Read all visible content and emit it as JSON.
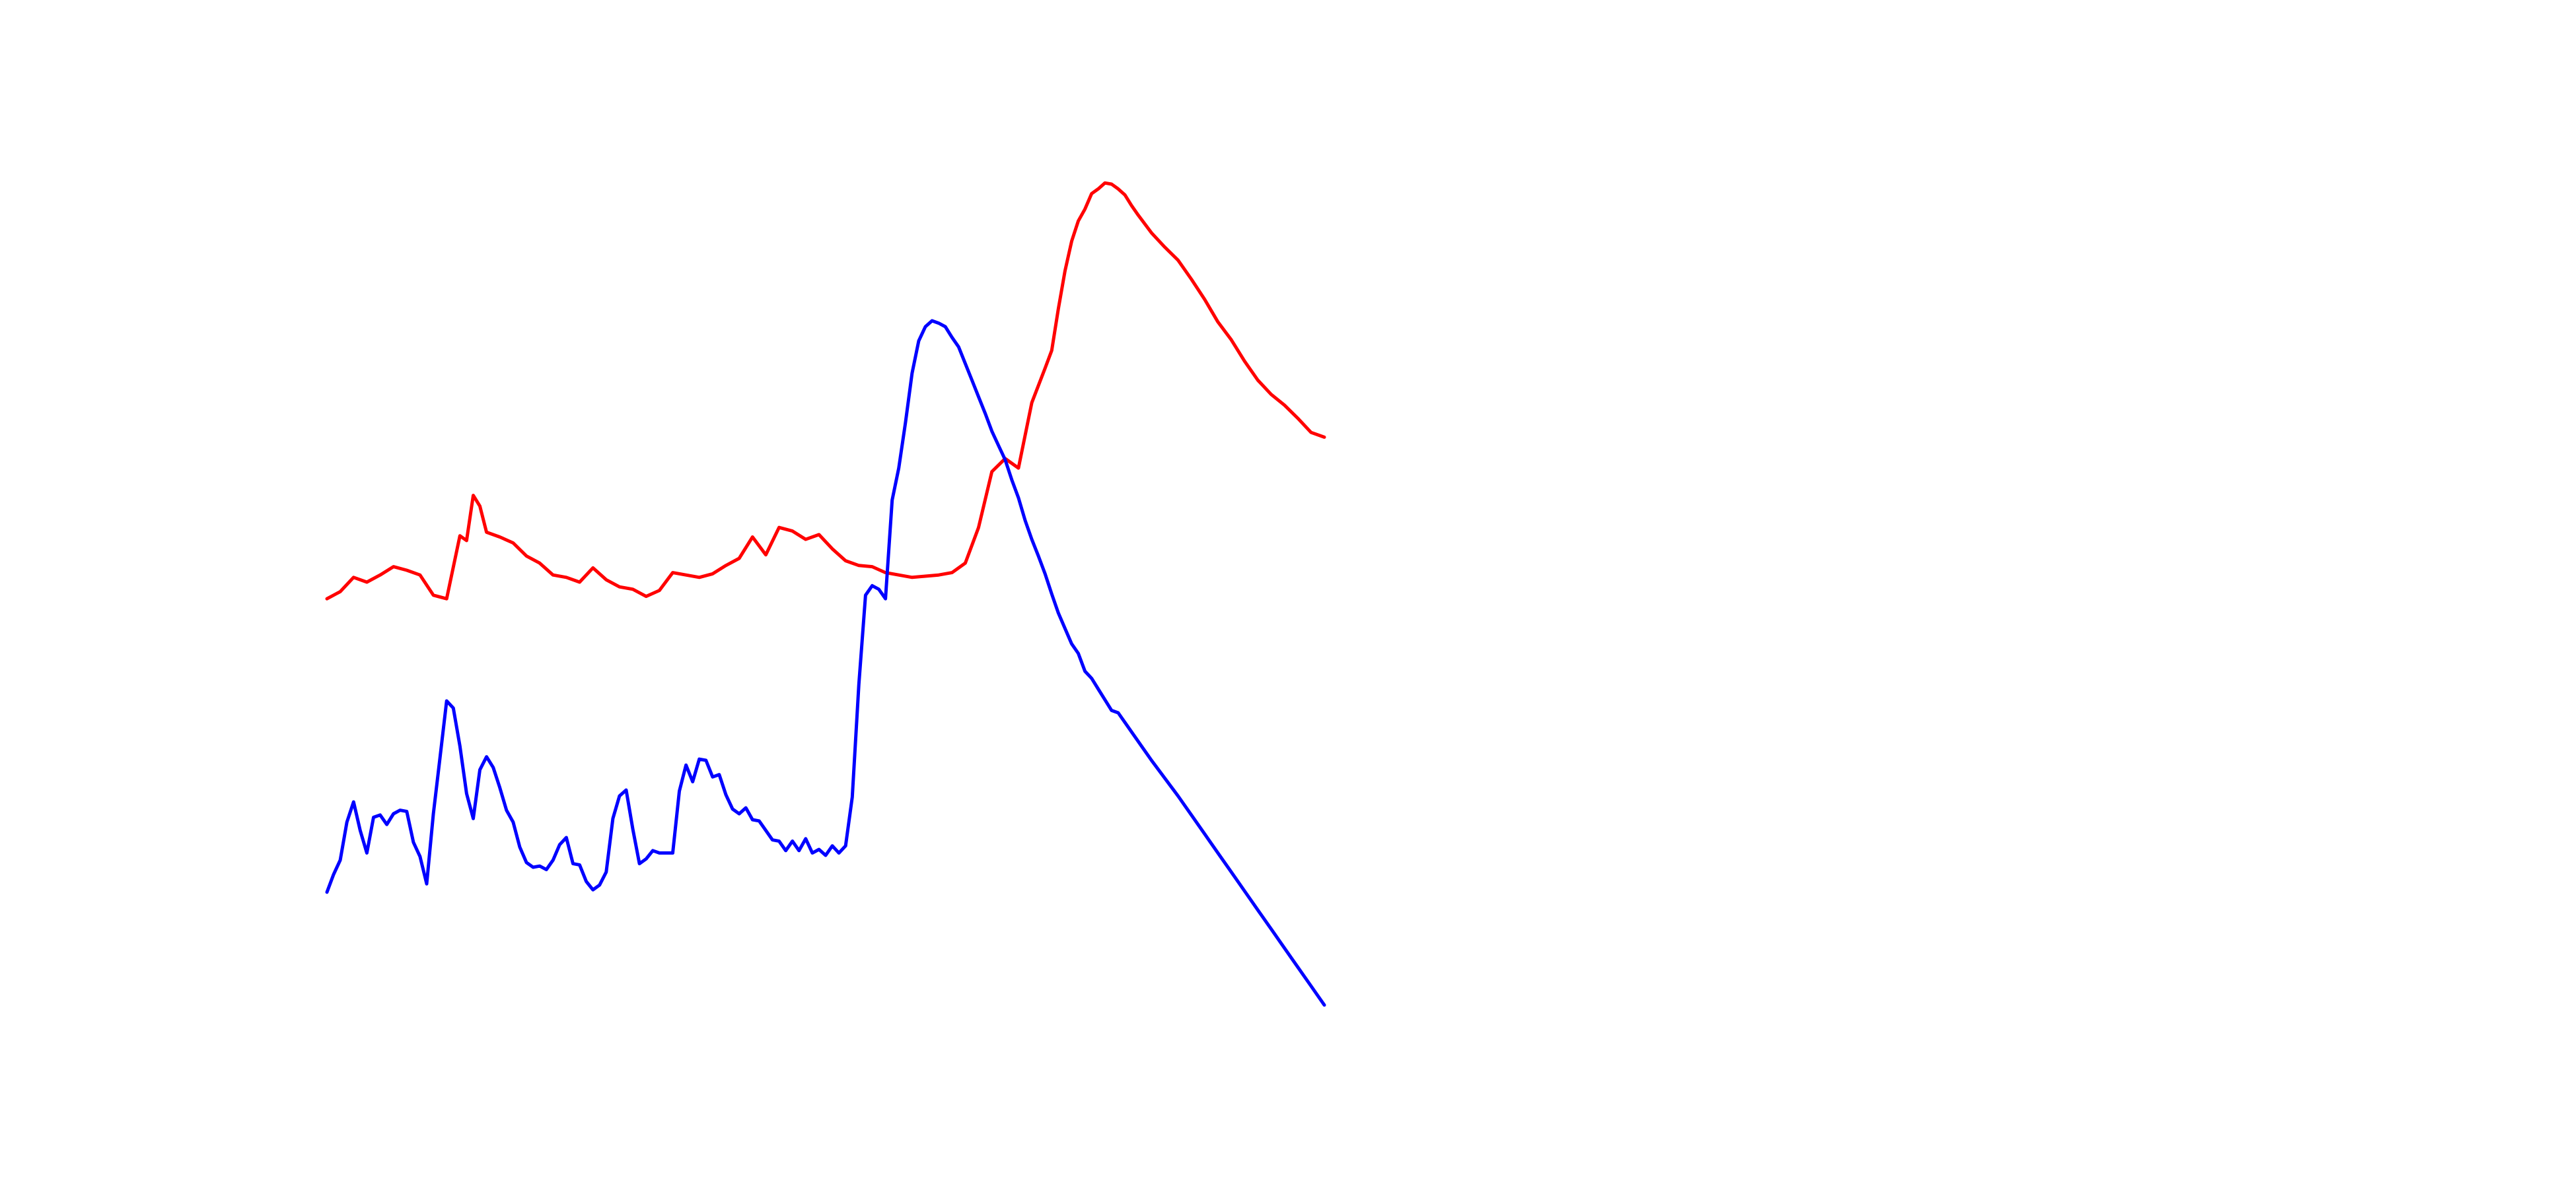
{
  "chart_data": {
    "type": "line",
    "title": "",
    "xlabel": "",
    "ylabel": "",
    "axes_visible": false,
    "grid": false,
    "legend": "none",
    "xlim": [
      0,
      150
    ],
    "ylim": [
      0,
      100
    ],
    "series": [
      {
        "color": "#ff0000",
        "x": [
          0,
          2,
          4,
          6,
          8,
          10,
          12,
          14,
          16,
          18,
          20,
          21,
          22,
          23,
          24,
          26,
          28,
          30,
          32,
          34,
          36,
          38,
          40,
          42,
          44,
          46,
          48,
          50,
          52,
          54,
          56,
          58,
          60,
          62,
          64,
          66,
          68,
          70,
          72,
          74,
          76,
          78,
          80,
          82,
          84,
          86,
          88,
          90,
          92,
          94,
          96,
          98,
          100,
          102,
          104,
          106,
          108,
          109,
          110,
          111,
          112,
          113,
          114,
          115,
          116,
          117,
          118,
          119,
          120,
          121,
          122,
          124,
          126,
          128,
          130,
          132,
          134,
          136,
          138,
          140,
          142,
          144,
          146,
          148,
          150
        ],
        "y": [
          49.6,
          50.2,
          51.4,
          51.0,
          51.6,
          52.3,
          52.0,
          51.6,
          49.9,
          49.6,
          54.9,
          54.5,
          58.3,
          57.4,
          55.2,
          54.8,
          54.3,
          53.2,
          52.6,
          51.6,
          51.4,
          51.0,
          52.2,
          51.2,
          50.6,
          50.4,
          49.8,
          50.3,
          51.8,
          51.6,
          51.4,
          51.7,
          52.4,
          53.0,
          54.8,
          53.3,
          55.6,
          55.3,
          54.6,
          55.0,
          53.8,
          52.8,
          52.4,
          52.3,
          51.8,
          51.6,
          51.4,
          51.5,
          51.6,
          51.8,
          52.6,
          55.6,
          60.3,
          61.4,
          60.6,
          66.1,
          69.0,
          70.5,
          74.0,
          77.2,
          79.7,
          81.4,
          82.4,
          83.7,
          84.1,
          84.6,
          84.5,
          84.1,
          83.6,
          82.7,
          81.9,
          80.4,
          79.2,
          78.1,
          76.5,
          74.8,
          72.9,
          71.4,
          69.6,
          68.0,
          66.8,
          65.9,
          64.8,
          63.6,
          63.2
        ]
      },
      {
        "color": "#0000ff",
        "x": [
          0,
          1,
          2,
          3,
          4,
          5,
          6,
          7,
          8,
          9,
          10,
          11,
          12,
          13,
          14,
          15,
          16,
          17,
          18,
          19,
          20,
          21,
          22,
          23,
          24,
          25,
          26,
          27,
          28,
          29,
          30,
          31,
          32,
          33,
          34,
          35,
          36,
          37,
          38,
          39,
          40,
          41,
          42,
          43,
          44,
          45,
          46,
          47,
          48,
          49,
          50,
          51,
          52,
          53,
          54,
          55,
          56,
          57,
          58,
          59,
          60,
          61,
          62,
          63,
          64,
          65,
          66,
          67,
          68,
          69,
          70,
          71,
          72,
          73,
          74,
          75,
          76,
          77,
          78,
          79,
          80,
          81,
          82,
          83,
          84,
          85,
          86,
          87,
          88,
          89,
          90,
          91,
          92,
          93,
          94,
          95,
          96,
          97,
          98,
          99,
          100,
          101,
          102,
          103,
          104,
          105,
          106,
          107,
          108,
          109,
          110,
          111,
          112,
          113,
          114,
          115,
          116,
          117,
          118,
          119,
          120,
          122,
          124,
          126,
          128,
          130,
          132,
          134,
          136,
          138,
          140,
          142,
          144,
          146,
          148,
          150
        ],
        "y": [
          24.9,
          26.4,
          27.6,
          30.8,
          32.5,
          30.1,
          28.2,
          31.2,
          31.4,
          30.6,
          31.5,
          31.8,
          31.7,
          29.1,
          27.9,
          25.6,
          31.5,
          36.2,
          41.0,
          40.4,
          37.2,
          33.2,
          31.1,
          35.2,
          36.3,
          35.4,
          33.7,
          31.8,
          30.8,
          28.7,
          27.4,
          27.0,
          27.1,
          26.8,
          27.6,
          28.9,
          29.5,
          27.3,
          27.2,
          25.8,
          25.1,
          25.5,
          26.6,
          31.1,
          33.0,
          33.5,
          30.2,
          27.3,
          27.7,
          28.4,
          28.2,
          28.2,
          28.2,
          33.4,
          35.6,
          34.2,
          36.1,
          36.0,
          34.6,
          34.8,
          33.1,
          31.9,
          31.5,
          32.0,
          31.0,
          30.9,
          30.1,
          29.3,
          29.2,
          28.4,
          29.2,
          28.4,
          29.4,
          28.2,
          28.5,
          28.0,
          28.8,
          28.2,
          28.8,
          32.9,
          42.4,
          49.9,
          50.7,
          50.4,
          49.6,
          57.9,
          60.6,
          64.4,
          68.6,
          71.3,
          72.5,
          73.0,
          72.8,
          72.5,
          71.6,
          70.8,
          69.4,
          68.0,
          66.6,
          65.2,
          63.7,
          62.5,
          61.3,
          59.6,
          58.1,
          56.2,
          54.6,
          53.2,
          51.7,
          50.0,
          48.4,
          47.1,
          45.8,
          45.0,
          43.5,
          42.9,
          42.0,
          41.1,
          40.2,
          40.0,
          39.2,
          37.6,
          36.0,
          34.5,
          33.0,
          31.4,
          29.8,
          28.2,
          26.6,
          25.0,
          23.4,
          21.8,
          20.2,
          18.6,
          17.0,
          15.4
        ]
      }
    ]
  }
}
